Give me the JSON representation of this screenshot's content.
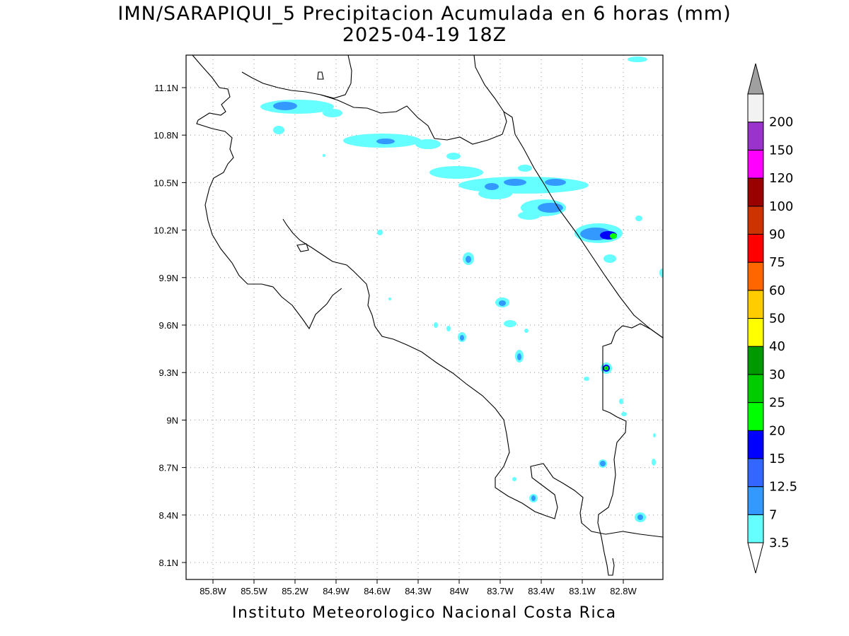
{
  "title": "IMN/SARAPIQUI_5 Precipitacion Acumulada en 6 horas (mm)",
  "subtitle": "2025-04-19 18Z",
  "footer": "Instituto Meteorologico Nacional Costa Rica",
  "lon_ticks": [
    "85.8W",
    "85.5W",
    "85.2W",
    "84.9W",
    "84.6W",
    "84.3W",
    "84W",
    "83.7W",
    "83.4W",
    "83.1W",
    "82.8W"
  ],
  "lat_ticks": [
    "11.1N",
    "10.8N",
    "10.5N",
    "10.2N",
    "9.9N",
    "9.6N",
    "9.3N",
    "9N",
    "8.7N",
    "8.4N",
    "8.1N"
  ],
  "colorbar": {
    "labels": [
      "3.5",
      "7",
      "12.5",
      "15",
      "20",
      "25",
      "30",
      "40",
      "50",
      "60",
      "75",
      "90",
      "100",
      "120",
      "150",
      "200"
    ],
    "colors": [
      "#66ffff",
      "#3399ff",
      "#3366ff",
      "#0000ff",
      "#00ff00",
      "#00cc00",
      "#009900",
      "#ffff00",
      "#ffcc00",
      "#ff6600",
      "#ff0000",
      "#cc3300",
      "#990000",
      "#ff00ff",
      "#9933cc",
      "#f2f2f2"
    ],
    "under_color": "#ffffff",
    "over_color": "#a0a0a0"
  }
}
